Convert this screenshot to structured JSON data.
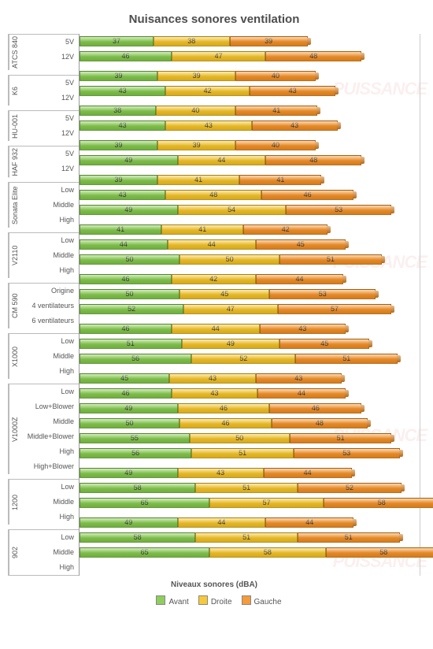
{
  "title": "Nuisances sonores ventilation",
  "xaxis_label": "Niveaux sonores (dBA)",
  "series": [
    {
      "name": "Avant",
      "color": "#8fce5c",
      "dark": "#6fae3c"
    },
    {
      "name": "Droite",
      "color": "#f6c93a",
      "dark": "#d6a91a"
    },
    {
      "name": "Gauche",
      "color": "#f59b3a",
      "dark": "#d57b1a"
    }
  ],
  "xmax": 170,
  "groups": [
    {
      "name": "ATCS 840",
      "rows": [
        {
          "label": "5V",
          "v": [
            37,
            38,
            39
          ]
        },
        {
          "label": "12V",
          "v": [
            46,
            47,
            48
          ]
        }
      ]
    },
    {
      "name": "K6",
      "rows": [
        {
          "label": "5V",
          "v": [
            39,
            39,
            40
          ]
        },
        {
          "label": "12V",
          "v": [
            43,
            42,
            43
          ]
        }
      ]
    },
    {
      "name": "HU-001",
      "rows": [
        {
          "label": "5V",
          "v": [
            38,
            40,
            41
          ]
        },
        {
          "label": "12V",
          "v": [
            43,
            43,
            43
          ]
        }
      ]
    },
    {
      "name": "HAF 932",
      "rows": [
        {
          "label": "5V",
          "v": [
            39,
            39,
            40
          ]
        },
        {
          "label": "12V",
          "v": [
            49,
            44,
            48
          ]
        }
      ]
    },
    {
      "name": "Sonata Elite",
      "rows": [
        {
          "label": "Low",
          "v": [
            39,
            41,
            41
          ]
        },
        {
          "label": "Middle",
          "v": [
            43,
            48,
            46
          ]
        },
        {
          "label": "High",
          "v": [
            49,
            54,
            53
          ]
        }
      ]
    },
    {
      "name": "V2110",
      "rows": [
        {
          "label": "Low",
          "v": [
            41,
            41,
            42
          ]
        },
        {
          "label": "Middle",
          "v": [
            44,
            44,
            45
          ]
        },
        {
          "label": "High",
          "v": [
            50,
            50,
            51
          ]
        }
      ]
    },
    {
      "name": "CM 590",
      "rows": [
        {
          "label": "Origine",
          "v": [
            46,
            42,
            44
          ]
        },
        {
          "label": "4 ventilateurs",
          "v": [
            50,
            45,
            53
          ]
        },
        {
          "label": "6 ventilateurs",
          "v": [
            52,
            47,
            57
          ]
        }
      ]
    },
    {
      "name": "X1000",
      "rows": [
        {
          "label": "Low",
          "v": [
            46,
            44,
            43
          ]
        },
        {
          "label": "Middle",
          "v": [
            51,
            49,
            45
          ]
        },
        {
          "label": "High",
          "v": [
            56,
            52,
            51
          ]
        }
      ]
    },
    {
      "name": "V1000Z",
      "rows": [
        {
          "label": "Low",
          "v": [
            45,
            43,
            43
          ]
        },
        {
          "label": "Low+Blower",
          "v": [
            46,
            43,
            44
          ]
        },
        {
          "label": "Middle",
          "v": [
            49,
            46,
            46
          ]
        },
        {
          "label": "Middle+Blower",
          "v": [
            50,
            46,
            48
          ]
        },
        {
          "label": "High",
          "v": [
            55,
            50,
            51
          ]
        },
        {
          "label": "High+Blower",
          "v": [
            56,
            51,
            53
          ]
        }
      ]
    },
    {
      "name": "1200",
      "rows": [
        {
          "label": "Low",
          "v": [
            49,
            43,
            44
          ]
        },
        {
          "label": "Middle",
          "v": [
            58,
            51,
            52
          ]
        },
        {
          "label": "High",
          "v": [
            65,
            57,
            58
          ]
        }
      ]
    },
    {
      "name": "902",
      "rows": [
        {
          "label": "Low",
          "v": [
            49,
            44,
            44
          ]
        },
        {
          "label": "Middle",
          "v": [
            58,
            51,
            51
          ]
        },
        {
          "label": "High",
          "v": [
            65,
            58,
            58
          ]
        }
      ]
    }
  ],
  "watermark": "PUISSANCE"
}
